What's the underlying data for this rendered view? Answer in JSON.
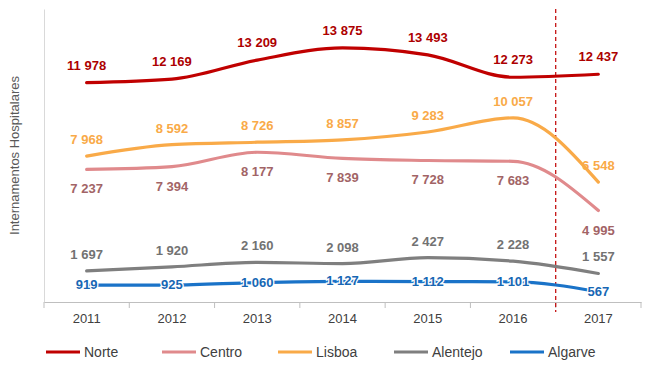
{
  "chart_data": {
    "type": "line",
    "y_label": "Internamentos Hospitalares",
    "categories": [
      "2011",
      "2012",
      "2013",
      "2014",
      "2015",
      "2016",
      "2017"
    ],
    "series": [
      {
        "name": "Norte",
        "color": "#c00000",
        "values": [
          11978,
          12169,
          13209,
          13875,
          13493,
          12273,
          12437
        ],
        "value_labels": [
          "11 978",
          "12 169",
          "13 209",
          "13 875",
          "13 493",
          "12 273",
          "12 437"
        ]
      },
      {
        "name": "Centro",
        "color": "#e08a8c",
        "values": [
          7237,
          7394,
          8177,
          7839,
          7728,
          7683,
          4995
        ],
        "value_labels": [
          "7 237",
          "7 394",
          "8 177",
          "7 839",
          "7 728",
          "7 683",
          "4 995"
        ]
      },
      {
        "name": "Lisboa",
        "color": "#f9aa48",
        "values": [
          7968,
          8592,
          8726,
          8857,
          9283,
          10057,
          6548
        ],
        "value_labels": [
          "7 968",
          "8 592",
          "8 726",
          "8 857",
          "9 283",
          "10 057",
          "6 548"
        ]
      },
      {
        "name": "Alentejo",
        "color": "#7f7f7f",
        "values": [
          1697,
          1920,
          2160,
          2098,
          2427,
          2228,
          1557
        ],
        "value_labels": [
          "1 697",
          "1 920",
          "2 160",
          "2 098",
          "2 427",
          "2 228",
          "1 557"
        ]
      },
      {
        "name": "Algarve",
        "color": "#1a73c8",
        "values": [
          919,
          925,
          1060,
          1127,
          1112,
          1101,
          567
        ],
        "value_labels": [
          "919",
          "925",
          "1 060",
          "1 127",
          "1 112",
          "1 101",
          "567"
        ]
      }
    ],
    "ylim": [
      0,
      16000
    ],
    "yticks": [],
    "tick_labels": "x",
    "grid": false,
    "data_labels": true,
    "legend": "bottom"
  }
}
